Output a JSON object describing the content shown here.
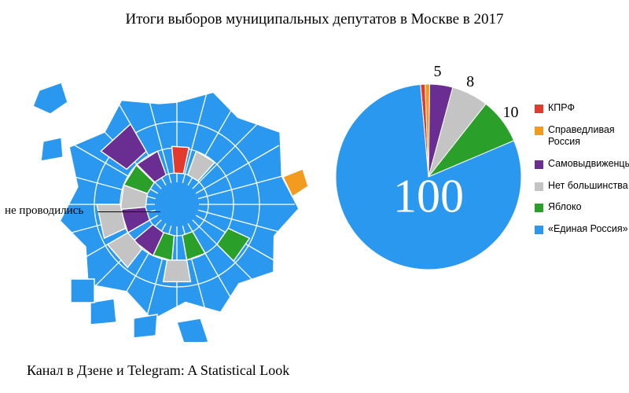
{
  "title": "Итоги выборов муниципальных депутатов в Москве в 2017",
  "footer": "Канал в Дзене и Telegram: A Statistical Look",
  "map": {
    "annotation": "не проводились",
    "colors": {
      "main": "#2b98f0",
      "green": "#2aa02a",
      "purple": "#6a2e92",
      "gray": "#c4c4c4",
      "red": "#e23b2e",
      "orange": "#f29b1e",
      "stroke": "#ffffff"
    }
  },
  "pie": {
    "type": "pie",
    "background": "#ffffff",
    "radius": 118,
    "big_value": "100",
    "big_color": "#ffffff",
    "big_fontsize": 60,
    "slices": [
      {
        "name": "kprf",
        "value": 1,
        "color": "#e23b2e",
        "label": ""
      },
      {
        "name": "sr",
        "value": 1,
        "color": "#f29b1e",
        "label": ""
      },
      {
        "name": "self",
        "value": 5,
        "color": "#6a2e92",
        "label": "5",
        "label_color": "#000000"
      },
      {
        "name": "none",
        "value": 8,
        "color": "#c4c4c4",
        "label": "8",
        "label_color": "#000000"
      },
      {
        "name": "yabloko",
        "value": 10,
        "color": "#2aa02a",
        "label": "10",
        "label_color": "#000000"
      },
      {
        "name": "er",
        "value": 100,
        "color": "#2b98f0",
        "label": ""
      }
    ],
    "start_angle_deg": -95
  },
  "legend": {
    "items": [
      {
        "label": "КПРФ",
        "color": "#e23b2e"
      },
      {
        "label": "Справедливая Россия",
        "color": "#f29b1e"
      },
      {
        "label": "Самовыдвиженцы",
        "color": "#6a2e92"
      },
      {
        "label": "Нет большинства",
        "color": "#c4c4c4"
      },
      {
        "label": "Яблоко",
        "color": "#2aa02a"
      },
      {
        "label": "«Единая Россия»",
        "color": "#2b98f0"
      }
    ],
    "fontsize": 12.5,
    "swatch_size": 11
  }
}
